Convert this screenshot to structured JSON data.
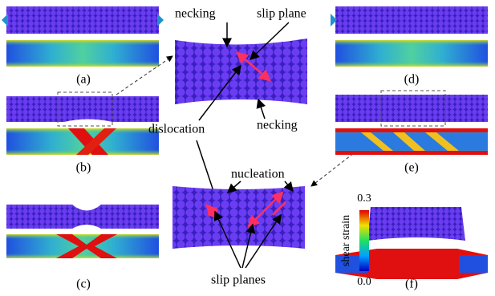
{
  "panel_labels": [
    "(a)",
    "(b)",
    "(c)",
    "(d)",
    "(e)",
    "(f)"
  ],
  "annotations": {
    "necking_top": "necking",
    "slip_plane": "slip plane",
    "necking_bottom": "necking",
    "dislocation": "dislocation",
    "nucleation": "nucleation",
    "slip_planes": "slip planes"
  },
  "colorbar": {
    "title": "shear strain",
    "max": "0.3",
    "min": "0.0"
  }
}
